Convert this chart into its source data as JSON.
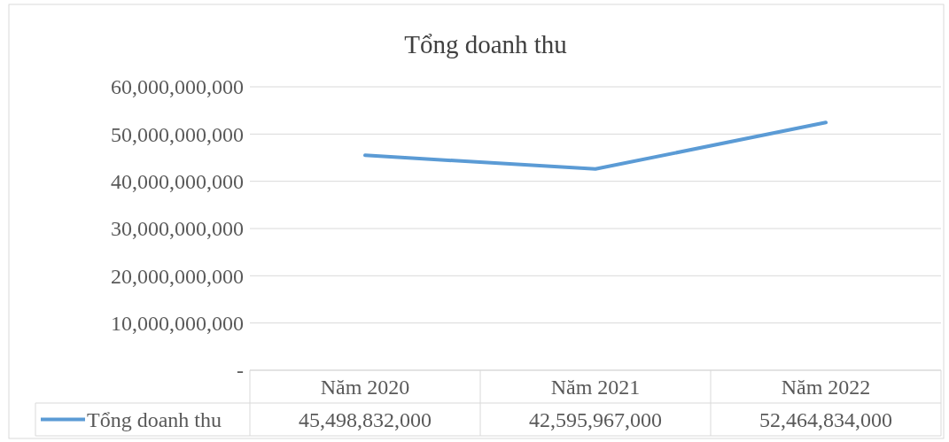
{
  "chart_data": {
    "type": "line",
    "title": "Tổng doanh thu",
    "categories": [
      "Năm 2020",
      "Năm 2021",
      "Năm 2022"
    ],
    "series": [
      {
        "name": "Tổng doanh thu",
        "color": "#5b9bd5",
        "values": [
          45498832000,
          42595967000,
          52464834000
        ],
        "value_labels": [
          "45,498,832,000",
          "42,595,967,000",
          "52,464,834,000"
        ]
      }
    ],
    "ylim": [
      0,
      60000000000
    ],
    "yticks": [
      {
        "value": 0,
        "label": "-"
      },
      {
        "value": 10000000000,
        "label": "10,000,000,000"
      },
      {
        "value": 20000000000,
        "label": "20,000,000,000"
      },
      {
        "value": 30000000000,
        "label": "30,000,000,000"
      },
      {
        "value": 40000000000,
        "label": "40,000,000,000"
      },
      {
        "value": 50000000000,
        "label": "50,000,000,000"
      },
      {
        "value": 60000000000,
        "label": "60,000,000,000"
      }
    ],
    "grid": "y",
    "legend": "bottom",
    "marker": "none",
    "line_style": "solid"
  }
}
